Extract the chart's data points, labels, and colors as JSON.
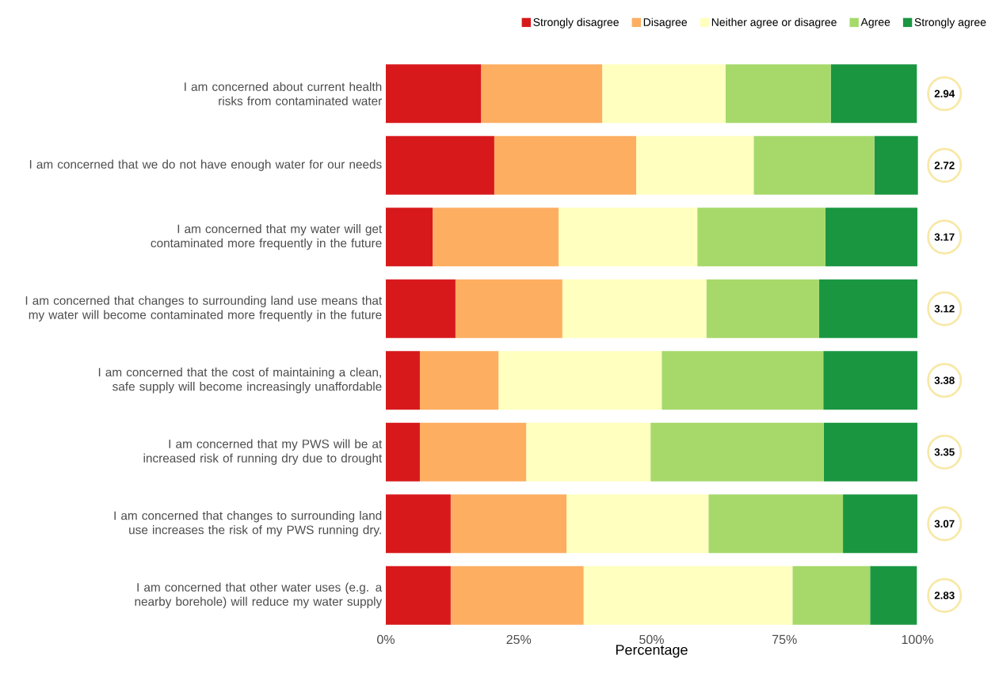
{
  "chart_data": {
    "type": "bar",
    "orientation": "horizontal",
    "stacked": true,
    "xlabel": "Percentage",
    "categories": [
      "I am concerned about current health risks from contaminated water",
      "I am concerned that we do not have enough water for our needs",
      "I am concerned that my water will get contaminated more frequently in the future",
      "I am concerned that changes to surrounding land use means that my water will become contaminated more frequently in the future",
      "I am concerned that the cost of maintaining a clean, safe supply will become increasingly unaffordable",
      "I am concerned that my PWS will be at increased risk of running dry due to drought",
      "I am concerned that changes to surrounding land use increases the risk of my PWS running dry.",
      "I am concerned that other water uses (e.g. a nearby borehole) will reduce my water supply"
    ],
    "series": [
      {
        "name": "Strongly disagree",
        "color": "#d7191c",
        "values": [
          17.9,
          20.4,
          8.8,
          13.1,
          6.4,
          6.4,
          12.2,
          12.2
        ]
      },
      {
        "name": "Disagree",
        "color": "#fdae61",
        "values": [
          22.8,
          26.7,
          23.7,
          20.1,
          14.8,
          20.0,
          21.8,
          25.0
        ]
      },
      {
        "name": "Neither agree or disagree",
        "color": "#ffffbf",
        "values": [
          23.2,
          22.1,
          26.1,
          27.1,
          30.7,
          23.4,
          26.7,
          39.3
        ]
      },
      {
        "name": "Agree",
        "color": "#a6d96a",
        "values": [
          19.8,
          22.7,
          24.1,
          21.2,
          30.4,
          32.6,
          25.3,
          14.6
        ]
      },
      {
        "name": "Strongly agree",
        "color": "#1a9641",
        "values": [
          16.2,
          8.2,
          17.3,
          18.5,
          17.7,
          17.6,
          14.0,
          8.8
        ]
      }
    ],
    "xlim": [
      0,
      100
    ],
    "xticks": [
      {
        "value": 0,
        "label": "0%"
      },
      {
        "value": 25,
        "label": "25%"
      },
      {
        "value": 50,
        "label": "50%"
      },
      {
        "value": 75,
        "label": "75%"
      },
      {
        "value": 100,
        "label": "100%"
      }
    ],
    "legend": "top right",
    "grid": false,
    "annotations": [
      "2.94",
      "2.72",
      "3.17",
      "3.12",
      "3.38",
      "3.35",
      "3.07",
      "2.83"
    ]
  }
}
